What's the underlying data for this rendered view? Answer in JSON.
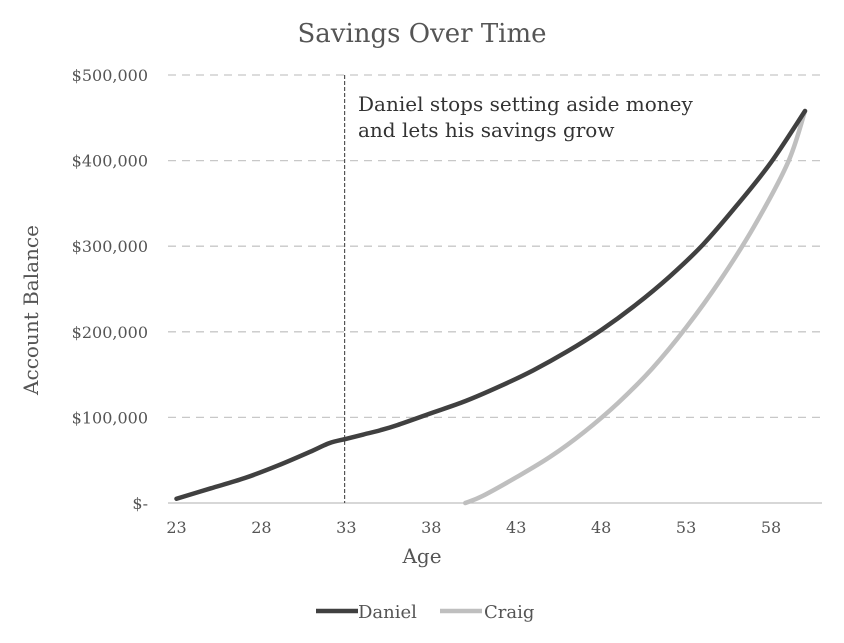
{
  "chart_data": {
    "type": "line",
    "title": "Savings Over Time",
    "xlabel": "Age",
    "ylabel": "Account Balance",
    "x_ticks": [
      "23",
      "28",
      "33",
      "38",
      "43",
      "48",
      "53",
      "58"
    ],
    "y_ticks": [
      "$-",
      "$100,000",
      "$200,000",
      "$300,000",
      "$400,000",
      "$500,000"
    ],
    "xlim": [
      22.5,
      61
    ],
    "ylim": [
      0,
      500000
    ],
    "grid": "horizontal dashed",
    "legend": "bottom",
    "annotation": {
      "x": 32.9,
      "lines": [
        "Daniel stops setting aside money",
        "and lets his savings grow"
      ]
    },
    "series": [
      {
        "name": "Daniel",
        "color": "#404040",
        "x": [
          23,
          25,
          27,
          29,
          31,
          32,
          33,
          34,
          35,
          36,
          38,
          40,
          42,
          44,
          46,
          48,
          50,
          52,
          54,
          56,
          58,
          60
        ],
        "y": [
          5000,
          17000,
          29000,
          44000,
          61000,
          70000,
          75000,
          80000,
          85000,
          91000,
          105000,
          119000,
          136000,
          155000,
          177000,
          202000,
          231000,
          264000,
          302000,
          348000,
          398000,
          458000
        ]
      },
      {
        "name": "Craig",
        "color": "#bfbfbf",
        "x": [
          40,
          41,
          43,
          45,
          47,
          49,
          51,
          53,
          55,
          57,
          59,
          60
        ],
        "y": [
          0,
          8000,
          30000,
          54000,
          83000,
          117000,
          157000,
          205000,
          260000,
          323000,
          398000,
          458000
        ]
      }
    ]
  }
}
